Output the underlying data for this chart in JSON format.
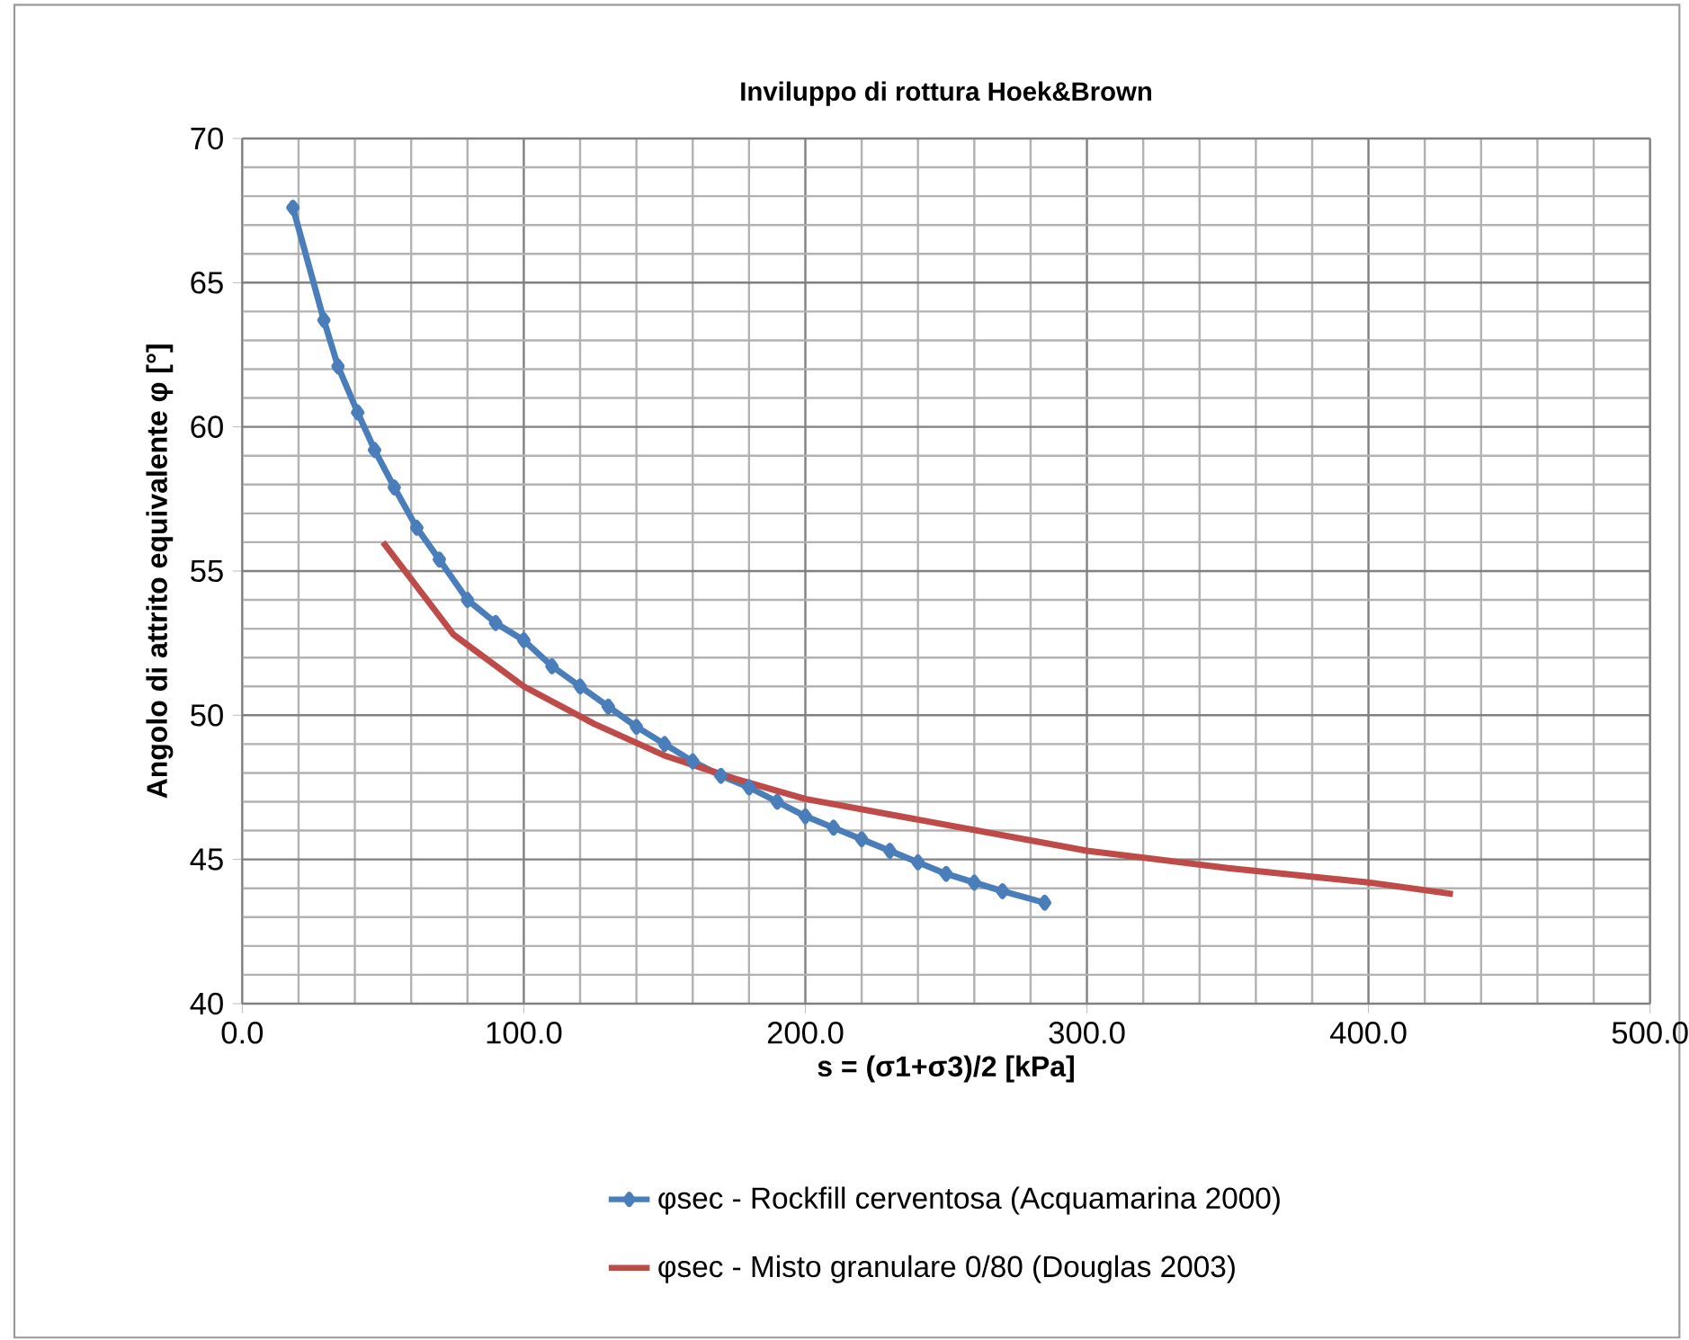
{
  "chart_data": {
    "type": "line",
    "title": "Inviluppo di rottura  Hoek&Brown",
    "xlabel": "s = (σ1+σ3)/2 [kPa]",
    "ylabel": "Angolo di attrito equivalente φ [°]",
    "xlim": [
      0,
      500
    ],
    "ylim": [
      40,
      70
    ],
    "xticks": [
      {
        "value": 0,
        "label": "0.0"
      },
      {
        "value": 100,
        "label": "100.0"
      },
      {
        "value": 200,
        "label": "200.0"
      },
      {
        "value": 300,
        "label": "300.0"
      },
      {
        "value": 400,
        "label": "400.0"
      },
      {
        "value": 500,
        "label": "500.0"
      }
    ],
    "yticks": [
      40,
      45,
      50,
      55,
      60,
      65,
      70
    ],
    "grid": true,
    "legend": "bottom",
    "series": [
      {
        "name": "φsec - Rockfill cerventosa (Acquamarina 2000)",
        "color": "#4a7ebb",
        "marker": "diamond",
        "x": [
          18,
          29,
          34,
          41,
          47,
          54,
          62,
          70,
          80,
          90,
          100,
          110,
          120,
          130,
          140,
          150,
          160,
          170,
          180,
          190,
          200,
          210,
          220,
          230,
          240,
          250,
          260,
          270,
          285
        ],
        "values": [
          67.6,
          63.7,
          62.1,
          60.5,
          59.2,
          57.9,
          56.5,
          55.4,
          54.0,
          53.2,
          52.6,
          51.7,
          51.0,
          50.3,
          49.6,
          49.0,
          48.4,
          47.9,
          47.5,
          47.0,
          46.5,
          46.1,
          45.7,
          45.3,
          44.9,
          44.5,
          44.2,
          43.9,
          43.5
        ]
      },
      {
        "name": "φsec - Misto granulare 0/80 (Douglas 2003)",
        "color": "#be4b48",
        "marker": "none",
        "x": [
          50,
          75,
          100,
          125,
          150,
          175,
          200,
          250,
          300,
          350,
          400,
          430
        ],
        "values": [
          56.0,
          52.8,
          51.0,
          49.7,
          48.6,
          47.8,
          47.1,
          46.2,
          45.3,
          44.7,
          44.2,
          43.8
        ]
      }
    ]
  }
}
